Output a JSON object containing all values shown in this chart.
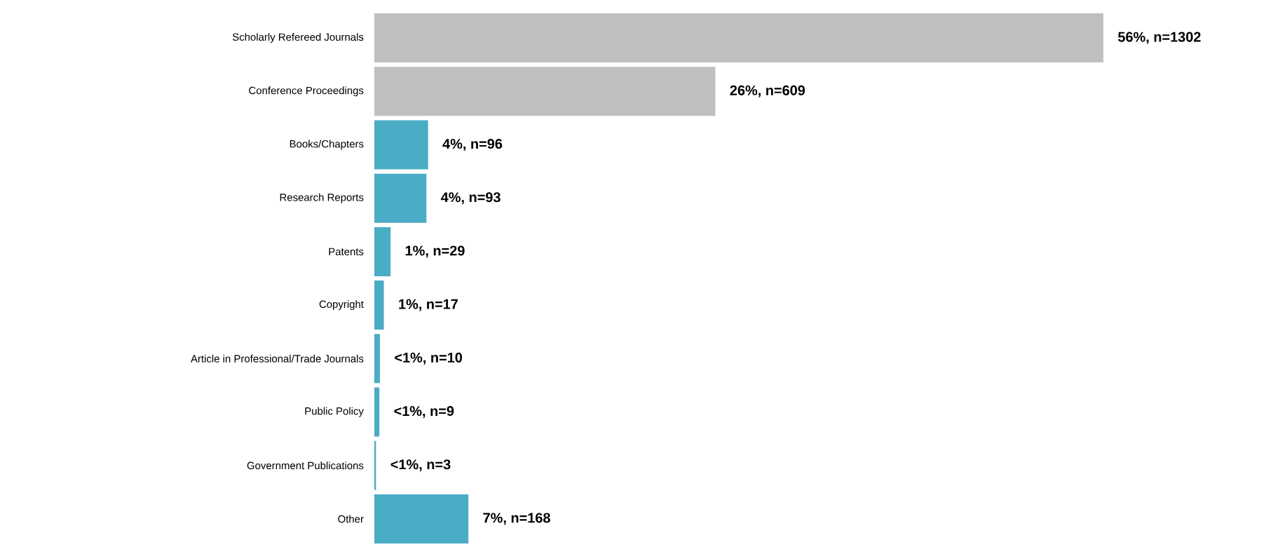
{
  "chart_data": {
    "type": "bar",
    "orientation": "horizontal",
    "categories": [
      "Scholarly Refereed Journals",
      "Conference Proceedings",
      "Books/Chapters",
      "Research Reports",
      "Patents",
      "Copyright",
      "Article in Professional/Trade Journals",
      "Public Policy",
      "Government Publications",
      "Other"
    ],
    "values": [
      1302,
      609,
      96,
      93,
      29,
      17,
      10,
      9,
      3,
      168
    ],
    "colors": [
      "#bfbfbf",
      "#bfbfbf",
      "#4bacc6",
      "#4bacc6",
      "#4bacc6",
      "#4bacc6",
      "#4bacc6",
      "#4bacc6",
      "#4bacc6",
      "#4bacc6"
    ],
    "value_labels": [
      "56%, n=1302",
      "26%, n=609",
      "4%, n=96",
      "4%, n=93",
      "1%, n=29",
      "1%, n=17",
      "<1%, n=10",
      "<1%, n=9",
      "<1%, n=3",
      "7%, n=168"
    ]
  }
}
